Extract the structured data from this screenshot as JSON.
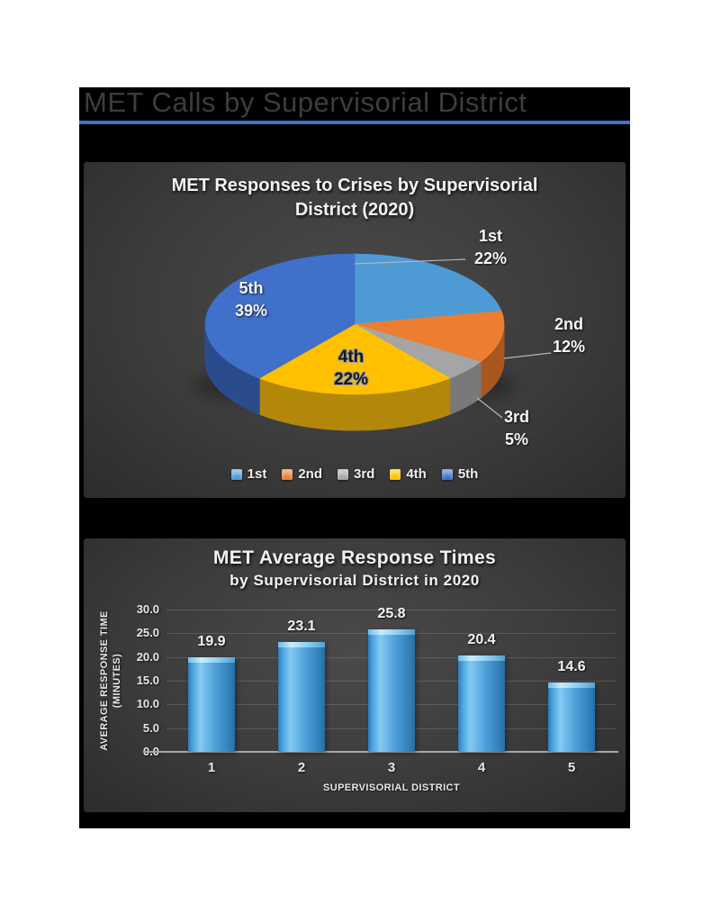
{
  "header": {
    "title": "MET Calls by Supervisorial District",
    "rule_color": "#4472c4"
  },
  "chart_data": [
    {
      "type": "pie",
      "title": "MET Responses to Crises by Supervisorial District (2020)",
      "title_lines": [
        "MET Responses to Crises by Supervisorial",
        "District (2020)"
      ],
      "labels": [
        "1st",
        "2nd",
        "3rd",
        "4th",
        "5th"
      ],
      "values": [
        22,
        12,
        5,
        22,
        39
      ],
      "value_labels": [
        "22%",
        "12%",
        "5%",
        "22%",
        "39%"
      ],
      "colors": [
        "#4d9ad5",
        "#ed7d31",
        "#a5a5a5",
        "#ffc000",
        "#4170ca"
      ],
      "side_colors": [
        "#33698f",
        "#a8571f",
        "#787878",
        "#b3870a",
        "#2b4c8c"
      ],
      "legend": [
        "1st",
        "2nd",
        "3rd",
        "4th",
        "5th"
      ],
      "legend_position": "bottom-center",
      "start_angle_deg": 0,
      "direction": "clockwise"
    },
    {
      "type": "bar",
      "title": "MET Average Response Times",
      "subtitle": "by Supervisorial District in 2020",
      "categories": [
        "1",
        "2",
        "3",
        "4",
        "5"
      ],
      "values": [
        19.9,
        23.1,
        25.8,
        20.4,
        14.6
      ],
      "value_labels": [
        "19.9",
        "23.1",
        "25.8",
        "20.4",
        "14.6"
      ],
      "xlabel": "SUPERVISORIAL DISTRICT",
      "ylabel": "AVERAGE RESPONSE TIME (MINUTES)",
      "ylabel_lines": [
        "AVERAGE RESPONSE TIME",
        "(MINUTES)"
      ],
      "ylim": [
        0,
        30
      ],
      "yticks": [
        "0.0",
        "5.0",
        "10.0",
        "15.0",
        "20.0",
        "25.0",
        "30.0"
      ],
      "ytick_step": 5,
      "grid": true,
      "bar_color": "#3d9bd9"
    }
  ]
}
